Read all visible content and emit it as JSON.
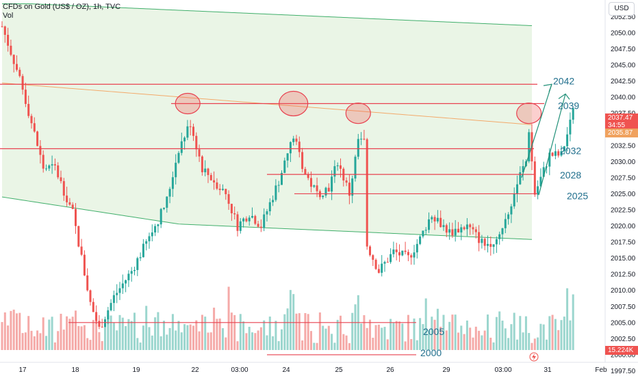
{
  "header": {
    "title": "CFDs on Gold (US$ / OZ), 1h, TVC",
    "vol_label": "Vol"
  },
  "currency_button": "USD",
  "price_tags": {
    "last": "2037.47",
    "countdown": "34:55",
    "ma": "2035.87",
    "volume": "15.224K"
  },
  "colors": {
    "up": "#26a69a",
    "down": "#ef5350",
    "level": "#e8414f",
    "annotation": "#1f6e8c",
    "channel_fill": "#eaf5e6",
    "channel_line": "#3fae6a",
    "ma_line": "#f3a96a"
  },
  "icons": [
    "lightning-icon"
  ],
  "chart_data": {
    "type": "candlestick",
    "symbol": "CFDs on Gold (US$ / OZ)",
    "interval": "1h",
    "source": "TVC",
    "x_axis": {
      "ticks": [
        "17",
        "18",
        "19",
        "22",
        "03:00",
        "24",
        "25",
        "26",
        "29",
        "03:00",
        "31",
        "Feb"
      ]
    },
    "y_axis": {
      "ticks": [
        "1997.50",
        "2000.00",
        "2002.50",
        "2005.00",
        "2007.50",
        "2010.00",
        "2012.50",
        "2015.00",
        "2017.50",
        "2020.00",
        "2022.50",
        "2025.00",
        "2027.50",
        "2030.00",
        "2032.50",
        "2035.00",
        "2037.50",
        "2040.00",
        "2042.50",
        "2045.00",
        "2047.50",
        "2050.00",
        "2052.50"
      ],
      "range": [
        1996.7,
        2055.1
      ]
    },
    "annotations": [
      {
        "label": "2042",
        "value": 2042
      },
      {
        "label": "2039",
        "value": 2039
      },
      {
        "label": "2032",
        "value": 2032
      },
      {
        "label": "2028",
        "value": 2028
      },
      {
        "label": "2025",
        "value": 2025
      },
      {
        "label": "2005",
        "value": 2005
      },
      {
        "label": "2000",
        "value": 2000
      }
    ],
    "resistance_circles": [
      {
        "value": 2039,
        "index": 64
      },
      {
        "value": 2039,
        "index": 99
      },
      {
        "value": 2037.5,
        "index": 121
      },
      {
        "value": 2037.5,
        "index": 179
      }
    ],
    "last_price": 2037.47,
    "ma_value": 2035.87
  }
}
